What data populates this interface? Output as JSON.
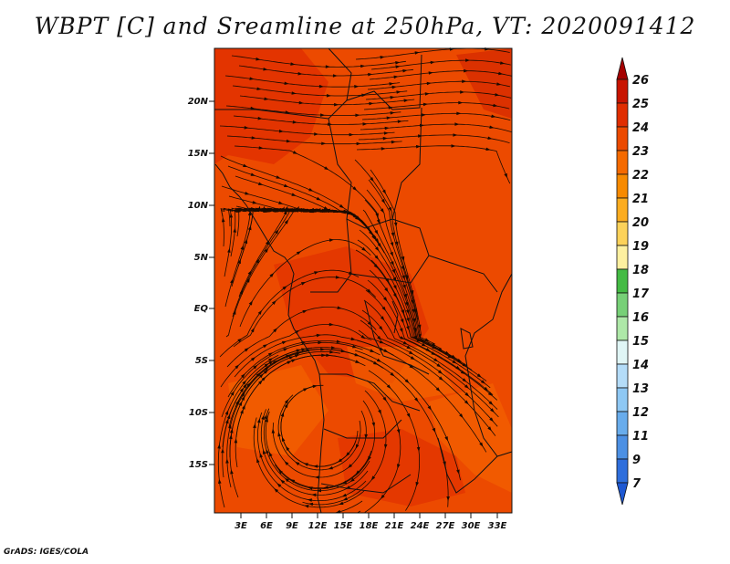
{
  "title": "WBPT [C] and Sreamline at 250hPa, VT: 2020091412",
  "credit": "GrADS: IGES/COLA",
  "lat_labels": [
    "20N",
    "15N",
    "10N",
    "5N",
    "EQ",
    "5S",
    "10S",
    "15S"
  ],
  "lon_labels": [
    "3E",
    "6E",
    "9E",
    "12E",
    "15E",
    "18E",
    "21E",
    "24E",
    "27E",
    "30E",
    "33E"
  ],
  "colorbar": {
    "labels": [
      "26",
      "25",
      "24",
      "23",
      "22",
      "21",
      "20",
      "19",
      "18",
      "17",
      "16",
      "15",
      "14",
      "13",
      "12",
      "11",
      "9",
      "7"
    ],
    "colors": [
      "#a50000",
      "#c81400",
      "#e02d00",
      "#ec4a00",
      "#f56a00",
      "#f78a00",
      "#fbac20",
      "#fcd25a",
      "#fdf0a0",
      "#44bb44",
      "#77d077",
      "#aee8a8",
      "#e0f5f5",
      "#b4dcf8",
      "#8ec8f4",
      "#68acec",
      "#4c90e4",
      "#2e6edc",
      "#1e58d2"
    ]
  },
  "colors": {
    "land_fill": "#ec4a00"
  }
}
